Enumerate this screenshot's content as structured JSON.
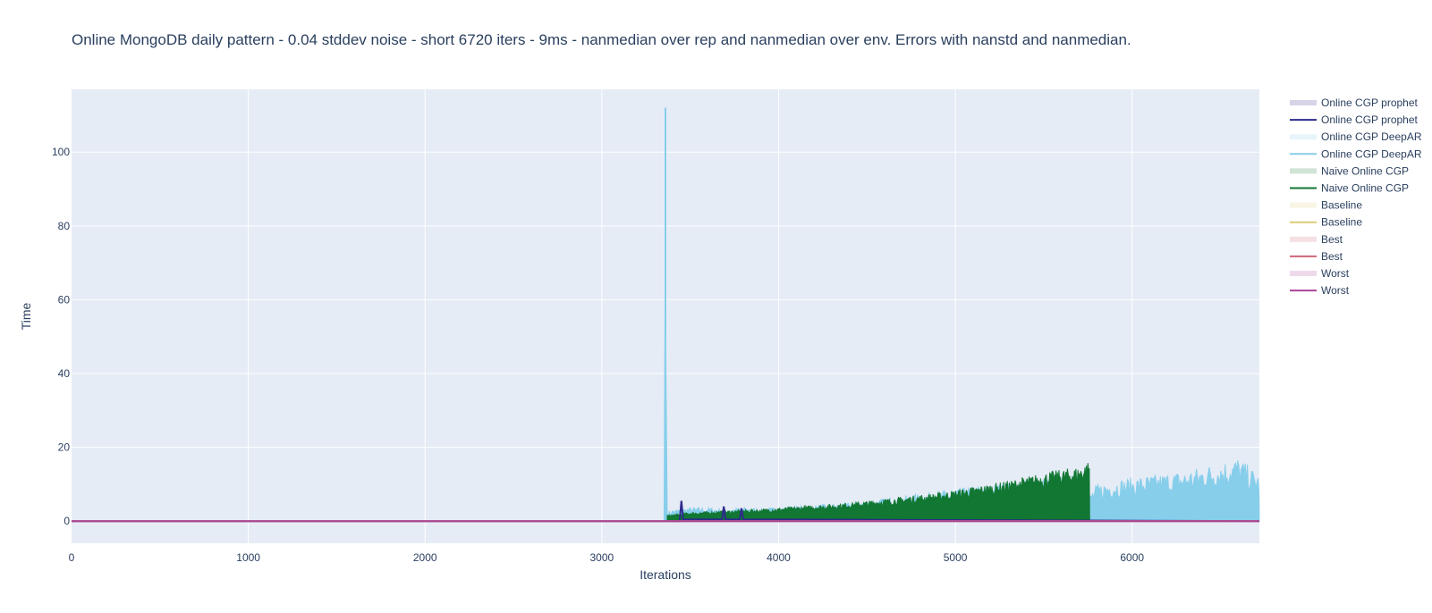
{
  "chart_data": {
    "type": "line",
    "title": "Online MongoDB daily pattern - 0.04 stddev noise - short 6720 iters - 9ms - nanmedian over rep and nanmedian over env. Errors with nanstd and nanmedian.",
    "xlabel": "Iterations",
    "ylabel": "Time",
    "xlim": [
      0,
      6720
    ],
    "ylim": [
      -6,
      117
    ],
    "x_ticks": [
      0,
      1000,
      2000,
      3000,
      4000,
      5000,
      6000
    ],
    "y_ticks": [
      0,
      20,
      40,
      60,
      80,
      100
    ],
    "grid": true,
    "legend_position": "right",
    "colors": {
      "plot_bg": "#e5ecf6",
      "grid": "#ffffff"
    },
    "legend": [
      {
        "label": "Online CGP prophet",
        "color": "#2e2a8c",
        "kind": "band"
      },
      {
        "label": "Online CGP prophet",
        "color": "#2e2a8c",
        "kind": "line"
      },
      {
        "label": "Online CGP DeepAR",
        "color": "#87ceeb",
        "kind": "band"
      },
      {
        "label": "Online CGP DeepAR",
        "color": "#87ceeb",
        "kind": "line"
      },
      {
        "label": "Naive Online CGP",
        "color": "#117733",
        "kind": "band"
      },
      {
        "label": "Naive Online CGP",
        "color": "#117733",
        "kind": "line"
      },
      {
        "label": "Baseline",
        "color": "#ddcc77",
        "kind": "band"
      },
      {
        "label": "Baseline",
        "color": "#ddcc77",
        "kind": "line"
      },
      {
        "label": "Best",
        "color": "#cc6677",
        "kind": "band"
      },
      {
        "label": "Best",
        "color": "#cc6677",
        "kind": "line"
      },
      {
        "label": "Worst",
        "color": "#aa4499",
        "kind": "band"
      },
      {
        "label": "Worst",
        "color": "#aa4499",
        "kind": "line"
      }
    ],
    "series": [
      {
        "name": "Online CGP DeepAR",
        "color": "#87ceeb",
        "x": [
          0,
          3355,
          3360,
          3365,
          3370,
          3400,
          3500,
          3600,
          3700,
          3800,
          3900,
          4000,
          4200,
          4400,
          4600,
          4800,
          5000,
          5200,
          5400,
          5600,
          5760,
          5800,
          5900,
          6000,
          6100,
          6200,
          6300,
          6400,
          6500,
          6600,
          6720
        ],
        "y": [
          0,
          0,
          112,
          15,
          2,
          2.5,
          3,
          3,
          2.8,
          3,
          2.8,
          3,
          3.5,
          4,
          5,
          6,
          7,
          8,
          9,
          10,
          6,
          8,
          9,
          9.5,
          10,
          10.5,
          11,
          12,
          13,
          14,
          10
        ]
      },
      {
        "name": "Online CGP prophet",
        "color": "#2e2a8c",
        "x": [
          0,
          3365,
          3440,
          3450,
          3460,
          3600,
          3680,
          3690,
          3700,
          3780,
          3790,
          3800,
          6720
        ],
        "y": [
          0,
          0,
          0,
          5.5,
          0.5,
          0.5,
          0.5,
          4,
          0.5,
          0.5,
          3.5,
          0.5,
          0
        ]
      },
      {
        "name": "Naive Online CGP",
        "color": "#117733",
        "x": [
          3370,
          3500,
          3700,
          3900,
          4100,
          4300,
          4500,
          4700,
          4900,
          5100,
          5300,
          5500,
          5700,
          5760
        ],
        "y": [
          1.5,
          2.2,
          2.6,
          3.0,
          3.6,
          4.2,
          5.0,
          6.0,
          7.0,
          8.5,
          10.0,
          12.0,
          13.5,
          15.0
        ]
      },
      {
        "name": "Baseline",
        "color": "#ddcc77",
        "x": [
          0,
          6720
        ],
        "y": [
          0,
          0
        ]
      },
      {
        "name": "Best",
        "color": "#cc6677",
        "x": [
          0,
          6720
        ],
        "y": [
          0,
          0
        ]
      },
      {
        "name": "Worst",
        "color": "#aa4499",
        "x": [
          0,
          6720
        ],
        "y": [
          0,
          0
        ]
      }
    ]
  }
}
